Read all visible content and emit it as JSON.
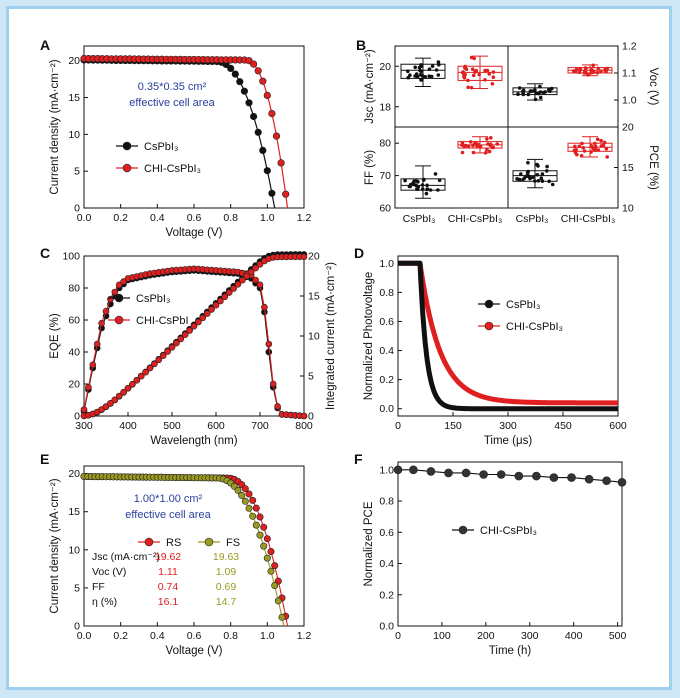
{
  "colors": {
    "csp": "#111111",
    "chi": "#e02020",
    "fs": "#9a9a22",
    "ann": "#2a3f9e"
  },
  "panels": {
    "A": {
      "label": "A",
      "annotation_line1": "0.35*0.35 cm²",
      "annotation_line2": "effective cell area",
      "legend": [
        "CsPbI₃",
        "CHI-CsPbI₃"
      ]
    },
    "B": {
      "label": "B"
    },
    "C": {
      "label": "C",
      "legend": [
        "CsPbI₃",
        "CHI-CsPbI"
      ]
    },
    "D": {
      "label": "D",
      "legend": [
        "CsPbI₃",
        "CHI-CsPbI₃"
      ]
    },
    "E": {
      "label": "E",
      "annotation_line1": "1.00*1.00 cm²",
      "annotation_line2": "effective cell area",
      "table": {
        "header": [
          "RS",
          "FS"
        ],
        "rows": [
          {
            "label": "Jsc (mA·cm⁻²)",
            "rs": "19.62",
            "fs": "19.63"
          },
          {
            "label": "Voc (V)",
            "rs": "1.11",
            "fs": "1.09"
          },
          {
            "label": "FF",
            "rs": "0.74",
            "fs": "0.69"
          },
          {
            "label": "η (%)",
            "rs": "16.1",
            "fs": "14.7"
          }
        ]
      }
    },
    "F": {
      "label": "F",
      "legend": [
        "CHI-CsPbI₃"
      ]
    }
  },
  "chart_data": [
    {
      "panel": "A",
      "type": "line",
      "xlabel": "Voltage (V)",
      "ylabel": "Current density (mA·cm⁻²)",
      "xlim": [
        0,
        1.2
      ],
      "ylim": [
        0,
        22
      ],
      "xticks": [
        0.0,
        0.2,
        0.4,
        0.6,
        0.8,
        1.0,
        1.2
      ],
      "yticks": [
        0,
        5,
        10,
        15,
        20
      ],
      "series": [
        {
          "name": "CsPbI₃",
          "jsc": 20.1,
          "voc": 1.04,
          "knee": 0.72
        },
        {
          "name": "CHI-CsPbI₃",
          "jsc": 20.3,
          "voc": 1.11,
          "knee": 0.88
        }
      ]
    },
    {
      "panel": "B",
      "type": "scatter",
      "categories": [
        "CsPbI₃",
        "CHI-CsPbI₃",
        "CsPbI₃",
        "CHI-CsPbI₃"
      ],
      "subplots": [
        {
          "ylabel": "Jsc (mA·cm⁻²)",
          "ylim": [
            17,
            21
          ],
          "yticks": [
            18,
            20
          ],
          "side": "left",
          "row": 0,
          "groups": [
            0,
            1
          ],
          "medians": [
            19.8,
            19.7
          ],
          "q": [
            [
              19.4,
              20.1
            ],
            [
              19.3,
              20.0
            ]
          ],
          "ranges": [
            [
              19.0,
              20.4
            ],
            [
              18.9,
              20.5
            ]
          ]
        },
        {
          "ylabel": "Voc (V)",
          "ylim": [
            0.9,
            1.2
          ],
          "yticks": [
            1.0,
            1.1,
            1.2
          ],
          "side": "right",
          "row": 0,
          "groups": [
            2,
            3
          ],
          "medians": [
            1.03,
            1.11
          ],
          "q": [
            [
              1.02,
              1.045
            ],
            [
              1.1,
              1.12
            ]
          ],
          "ranges": [
            [
              1.0,
              1.06
            ],
            [
              1.09,
              1.13
            ]
          ]
        },
        {
          "ylabel": "FF (%)",
          "ylim": [
            60,
            85
          ],
          "yticks": [
            60,
            70,
            80
          ],
          "side": "left",
          "row": 1,
          "groups": [
            0,
            1
          ],
          "medians": [
            67,
            79.5
          ],
          "q": [
            [
              65.5,
              69
            ],
            [
              78.5,
              80.5
            ]
          ],
          "ranges": [
            [
              63,
              73
            ],
            [
              77,
              82
            ]
          ]
        },
        {
          "ylabel": "PCE (%)",
          "ylim": [
            10,
            20
          ],
          "yticks": [
            10,
            15,
            20
          ],
          "side": "right",
          "row": 1,
          "groups": [
            2,
            3
          ],
          "medians": [
            14,
            17.5
          ],
          "q": [
            [
              13.3,
              14.6
            ],
            [
              17.0,
              18.0
            ]
          ],
          "ranges": [
            [
              12.5,
              16
            ],
            [
              16.3,
              18.8
            ]
          ]
        }
      ]
    },
    {
      "panel": "C",
      "type": "line",
      "xlabel": "Wavelength (nm)",
      "ylabel": "EQE (%)",
      "ylabel2": "Integrated current (mA·cm⁻²)",
      "xlim": [
        300,
        800
      ],
      "ylim": [
        0,
        100
      ],
      "y2lim": [
        0,
        20
      ],
      "xticks": [
        300,
        400,
        500,
        600,
        700,
        800
      ],
      "yticks": [
        0,
        20,
        40,
        60,
        80,
        100
      ],
      "y2ticks": [
        0,
        5,
        10,
        15,
        20
      ],
      "series": [
        {
          "name": "CsPbI₃",
          "eqe": [
            [
              300,
              3
            ],
            [
              320,
              30
            ],
            [
              340,
              55
            ],
            [
              360,
              70
            ],
            [
              380,
              80
            ],
            [
              400,
              85
            ],
            [
              450,
              88
            ],
            [
              500,
              90
            ],
            [
              550,
              91
            ],
            [
              600,
              90
            ],
            [
              650,
              89
            ],
            [
              680,
              86
            ],
            [
              700,
              80
            ],
            [
              710,
              65
            ],
            [
              720,
              40
            ],
            [
              730,
              18
            ],
            [
              740,
              5
            ],
            [
              750,
              1
            ],
            [
              800,
              0
            ]
          ]
        },
        {
          "name": "CHI-CsPbI",
          "eqe": [
            [
              300,
              4
            ],
            [
              320,
              32
            ],
            [
              340,
              58
            ],
            [
              360,
              73
            ],
            [
              380,
              82
            ],
            [
              400,
              86
            ],
            [
              450,
              89
            ],
            [
              500,
              91
            ],
            [
              550,
              92
            ],
            [
              600,
              91
            ],
            [
              650,
              90
            ],
            [
              680,
              88
            ],
            [
              700,
              82
            ],
            [
              710,
              68
            ],
            [
              720,
              45
            ],
            [
              730,
              20
            ],
            [
              740,
              6
            ],
            [
              750,
              1
            ],
            [
              800,
              0
            ]
          ]
        }
      ]
    },
    {
      "panel": "D",
      "type": "line",
      "xlabel": "Time (μs)",
      "ylabel": "Normalized Photovoltage",
      "xlim": [
        0,
        600
      ],
      "ylim": [
        -0.05,
        1.05
      ],
      "xticks": [
        0,
        150,
        300,
        450,
        600
      ],
      "yticks": [
        0.0,
        0.2,
        0.4,
        0.6,
        0.8,
        1.0
      ],
      "series": [
        {
          "name": "CsPbI₃",
          "onset": 60,
          "tau": 18,
          "floor": 0.0
        },
        {
          "name": "CHI-CsPbI₃",
          "onset": 60,
          "tau": 55,
          "floor": 0.04
        }
      ]
    },
    {
      "panel": "E",
      "type": "line",
      "xlabel": "Voltage (V)",
      "ylabel": "Current density (mA·cm⁻²)",
      "xlim": [
        0,
        1.2
      ],
      "ylim": [
        0,
        21
      ],
      "xticks": [
        0.0,
        0.2,
        0.4,
        0.6,
        0.8,
        1.0,
        1.2
      ],
      "yticks": [
        0,
        5,
        10,
        15,
        20
      ],
      "series": [
        {
          "name": "RS",
          "jsc": 19.62,
          "voc": 1.11,
          "knee": 0.78
        },
        {
          "name": "FS",
          "jsc": 19.63,
          "voc": 1.09,
          "knee": 0.72
        }
      ]
    },
    {
      "panel": "F",
      "type": "line",
      "xlabel": "Time (h)",
      "ylabel": "Normalized PCE",
      "xlim": [
        0,
        510
      ],
      "ylim": [
        0,
        1.05
      ],
      "xticks": [
        0,
        100,
        200,
        300,
        400,
        500
      ],
      "yticks": [
        0.0,
        0.2,
        0.4,
        0.6,
        0.8,
        1.0
      ],
      "series": [
        {
          "name": "CHI-CsPbI₃",
          "x": [
            0,
            35,
            75,
            115,
            155,
            195,
            235,
            275,
            315,
            355,
            395,
            435,
            475,
            510
          ],
          "y": [
            1.0,
            1.0,
            0.99,
            0.98,
            0.98,
            0.97,
            0.97,
            0.96,
            0.96,
            0.95,
            0.95,
            0.94,
            0.93,
            0.92
          ]
        }
      ]
    }
  ]
}
